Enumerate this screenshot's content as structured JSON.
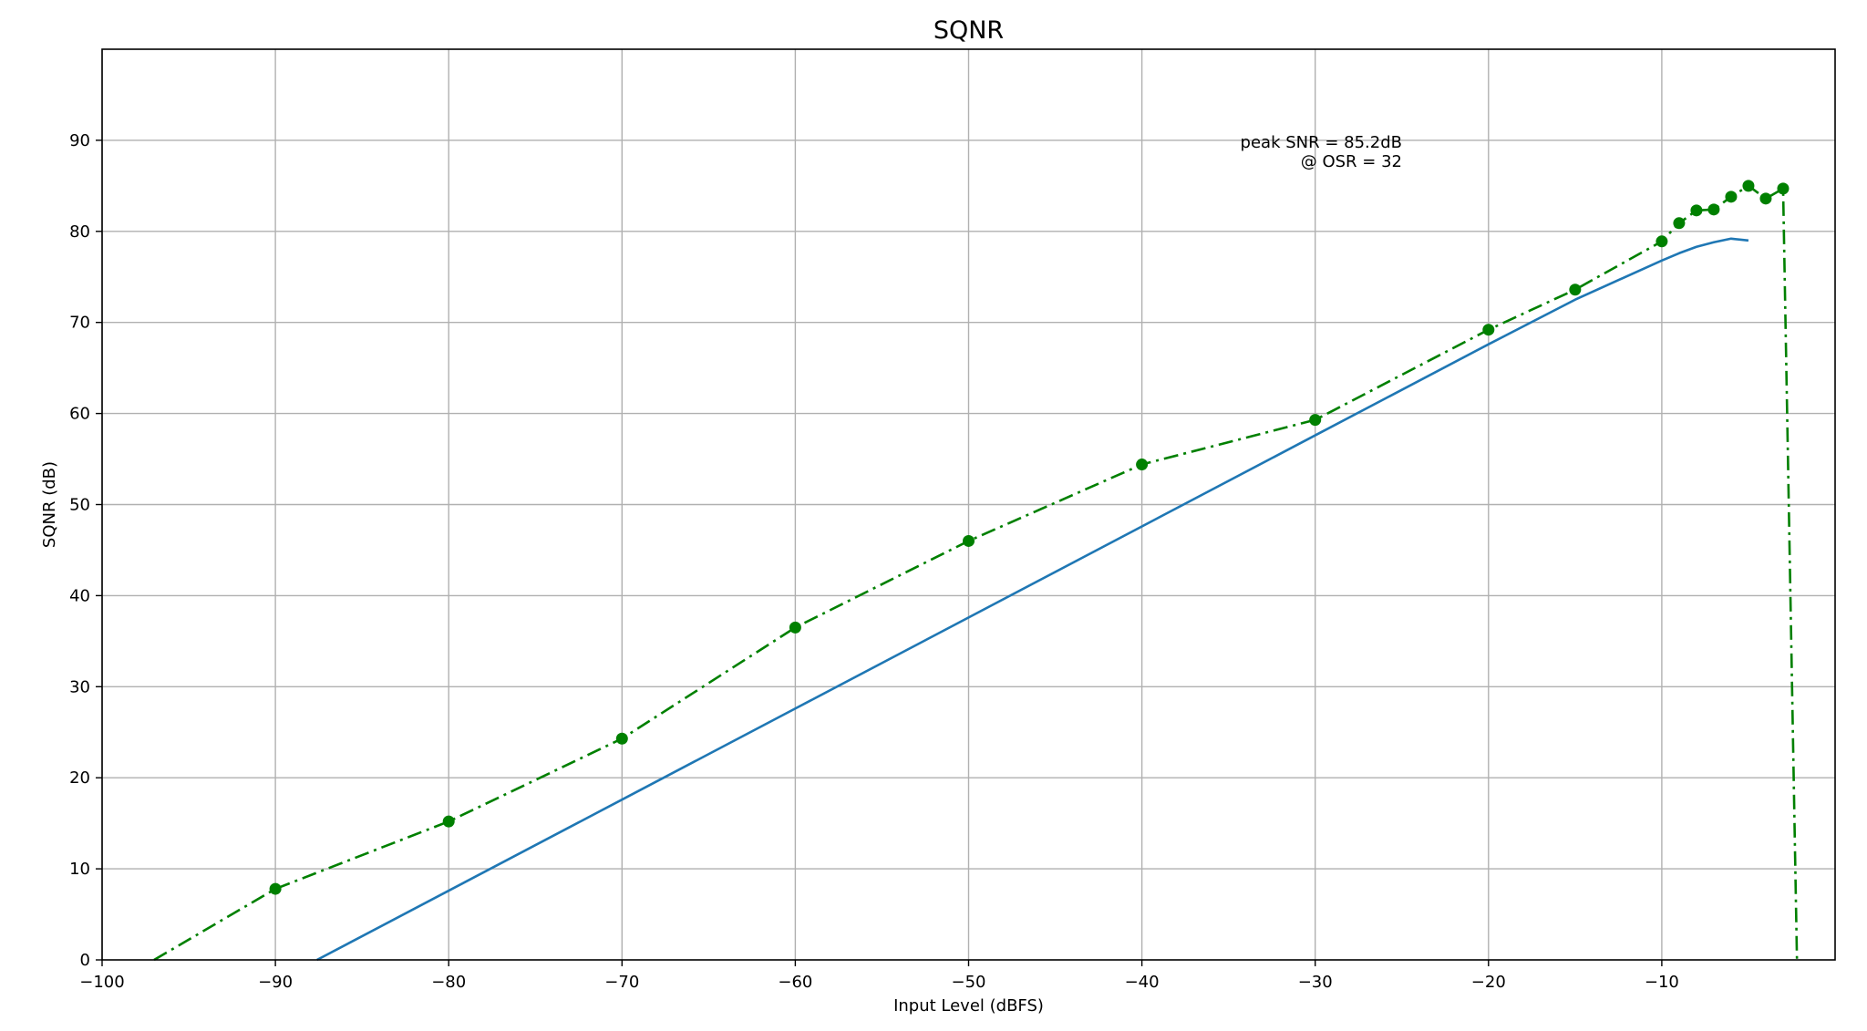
{
  "chart_data": {
    "type": "line",
    "title": "SQNR",
    "xlabel": "Input Level (dBFS)",
    "ylabel": "SQNR (dB)",
    "xlim": [
      -100,
      0
    ],
    "ylim": [
      0,
      100
    ],
    "x_ticks": [
      -100,
      -90,
      -80,
      -70,
      -60,
      -50,
      -40,
      -30,
      -20,
      -10
    ],
    "x_tick_labels": [
      "−100",
      "−90",
      "−80",
      "−70",
      "−60",
      "−50",
      "−40",
      "−30",
      "−20",
      "−10"
    ],
    "y_ticks": [
      0,
      10,
      20,
      30,
      40,
      50,
      60,
      70,
      80,
      90
    ],
    "y_tick_labels": [
      "0",
      "10",
      "20",
      "30",
      "40",
      "50",
      "60",
      "70",
      "80",
      "90"
    ],
    "grid": true,
    "annotation": [
      "peak SNR = 85.2dB",
      "@ OSR = 32"
    ],
    "series": [
      {
        "style": "solid",
        "color": "#1f77b4",
        "markers": false,
        "x": [
          -87.6,
          -80,
          -70,
          -60,
          -50,
          -40,
          -30,
          -20,
          -15,
          -10,
          -9,
          -8,
          -7,
          -6,
          -5
        ],
        "y": [
          0,
          7.6,
          17.6,
          27.6,
          37.6,
          47.6,
          57.6,
          67.6,
          72.5,
          76.8,
          77.6,
          78.3,
          78.8,
          79.2,
          79.0
        ]
      },
      {
        "style": "dashdot",
        "color": "#008000",
        "markers": true,
        "x": [
          -97,
          -90,
          -80,
          -70,
          -60,
          -50,
          -40,
          -30,
          -20,
          -15,
          -10,
          -9,
          -8,
          -7,
          -6,
          -5,
          -4,
          -3,
          -2.2
        ],
        "y": [
          0,
          7.8,
          15.2,
          24.3,
          36.5,
          46.0,
          54.4,
          59.3,
          69.2,
          73.6,
          78.9,
          80.9,
          82.3,
          82.4,
          83.8,
          85.0,
          83.6,
          84.7,
          0
        ],
        "marker_mask": [
          false,
          true,
          true,
          true,
          true,
          true,
          true,
          true,
          true,
          true,
          true,
          true,
          true,
          true,
          true,
          true,
          true,
          true,
          false
        ]
      }
    ]
  }
}
